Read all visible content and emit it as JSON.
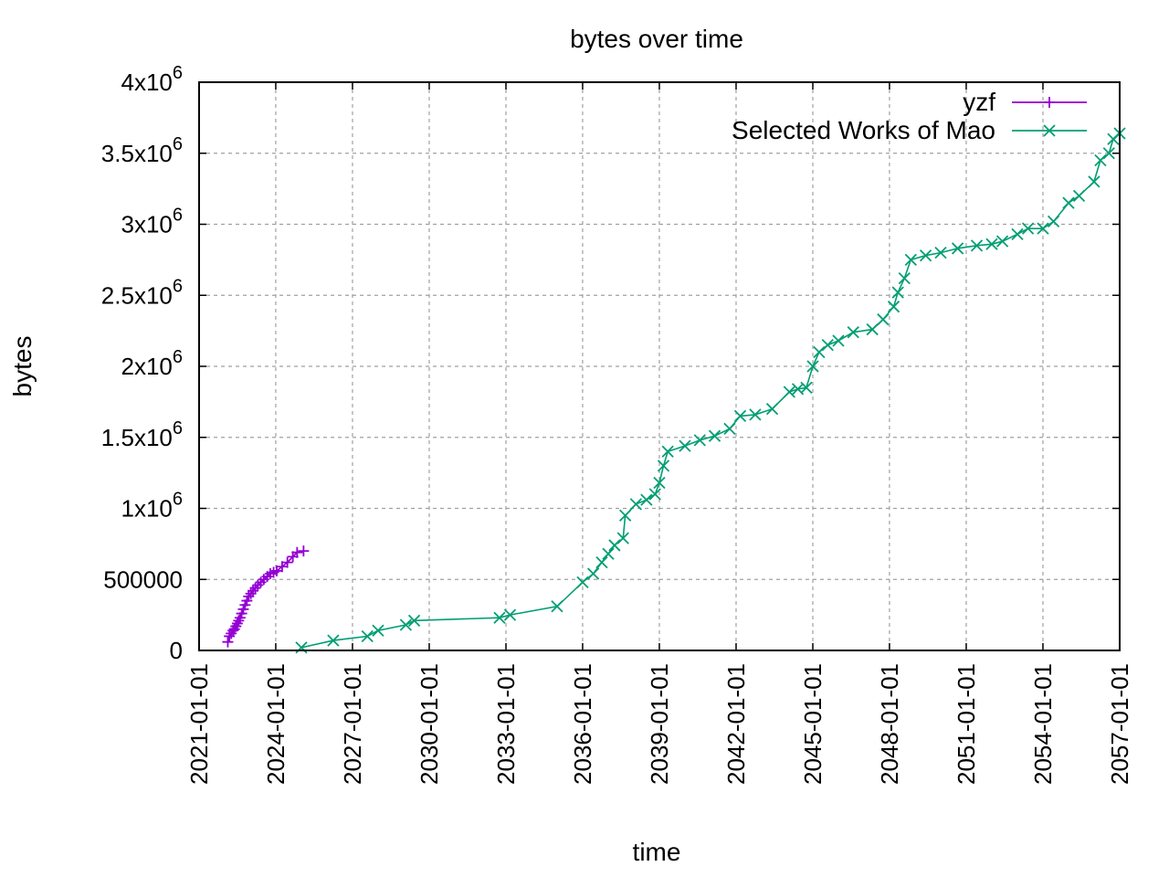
{
  "chart_data": {
    "type": "line",
    "title": "bytes over time",
    "xlabel": "time",
    "ylabel": "bytes",
    "xlim": [
      "2021-01-01",
      "2057-01-01"
    ],
    "ylim": [
      0,
      4000000
    ],
    "grid": true,
    "legend_position": "top-right",
    "x_ticks": [
      "2021-01-01",
      "2024-01-01",
      "2027-01-01",
      "2030-01-01",
      "2033-01-01",
      "2036-01-01",
      "2039-01-01",
      "2042-01-01",
      "2045-01-01",
      "2048-01-01",
      "2051-01-01",
      "2054-01-01",
      "2057-01-01"
    ],
    "y_ticks": [
      {
        "value": 0,
        "base": "0",
        "exp": ""
      },
      {
        "value": 500000,
        "base": "500000",
        "exp": ""
      },
      {
        "value": 1000000,
        "base": "1x10",
        "exp": "6"
      },
      {
        "value": 1500000,
        "base": "1.5x10",
        "exp": "6"
      },
      {
        "value": 2000000,
        "base": "2x10",
        "exp": "6"
      },
      {
        "value": 2500000,
        "base": "2.5x10",
        "exp": "6"
      },
      {
        "value": 3000000,
        "base": "3x10",
        "exp": "6"
      },
      {
        "value": 3500000,
        "base": "3.5x10",
        "exp": "6"
      },
      {
        "value": 4000000,
        "base": "4x10",
        "exp": "6"
      }
    ],
    "series": [
      {
        "name": "yzf",
        "color": "#9400d3",
        "marker": "plus",
        "points": [
          [
            "2022-02-15",
            60000
          ],
          [
            "2022-03-10",
            100000
          ],
          [
            "2022-04-05",
            120000
          ],
          [
            "2022-05-01",
            140000
          ],
          [
            "2022-05-20",
            150000
          ],
          [
            "2022-06-10",
            170000
          ],
          [
            "2022-07-01",
            190000
          ],
          [
            "2022-07-20",
            210000
          ],
          [
            "2022-08-10",
            230000
          ],
          [
            "2022-09-01",
            260000
          ],
          [
            "2022-09-25",
            290000
          ],
          [
            "2022-10-20",
            320000
          ],
          [
            "2022-11-15",
            350000
          ],
          [
            "2022-12-10",
            380000
          ],
          [
            "2023-01-10",
            400000
          ],
          [
            "2023-02-10",
            420000
          ],
          [
            "2023-03-15",
            440000
          ],
          [
            "2023-04-20",
            460000
          ],
          [
            "2023-06-01",
            480000
          ],
          [
            "2023-07-15",
            500000
          ],
          [
            "2023-09-01",
            520000
          ],
          [
            "2023-10-15",
            540000
          ],
          [
            "2023-12-01",
            550000
          ],
          [
            "2024-01-15",
            560000
          ],
          [
            "2024-04-01",
            590000
          ],
          [
            "2024-06-15",
            620000
          ],
          [
            "2024-09-01",
            660000
          ],
          [
            "2024-11-01",
            690000
          ],
          [
            "2025-02-01",
            700000
          ]
        ]
      },
      {
        "name": "Selected Works of Mao",
        "color": "#009e73",
        "marker": "cross",
        "points": [
          [
            "2025-01-01",
            20000
          ],
          [
            "2026-04-01",
            70000
          ],
          [
            "2027-08-01",
            100000
          ],
          [
            "2028-01-01",
            140000
          ],
          [
            "2029-02-01",
            180000
          ],
          [
            "2029-06-01",
            210000
          ],
          [
            "2032-10-01",
            230000
          ],
          [
            "2033-03-01",
            250000
          ],
          [
            "2035-01-01",
            310000
          ],
          [
            "2036-01-01",
            480000
          ],
          [
            "2036-06-01",
            540000
          ],
          [
            "2036-10-01",
            620000
          ],
          [
            "2037-01-01",
            680000
          ],
          [
            "2037-04-01",
            740000
          ],
          [
            "2037-08-01",
            790000
          ],
          [
            "2037-09-01",
            950000
          ],
          [
            "2038-02-01",
            1030000
          ],
          [
            "2038-07-01",
            1060000
          ],
          [
            "2038-11-01",
            1100000
          ],
          [
            "2039-01-01",
            1180000
          ],
          [
            "2039-03-01",
            1300000
          ],
          [
            "2039-05-01",
            1400000
          ],
          [
            "2040-01-01",
            1440000
          ],
          [
            "2040-08-01",
            1480000
          ],
          [
            "2041-03-01",
            1510000
          ],
          [
            "2041-10-01",
            1560000
          ],
          [
            "2042-03-01",
            1650000
          ],
          [
            "2042-10-01",
            1660000
          ],
          [
            "2043-06-01",
            1700000
          ],
          [
            "2044-02-01",
            1820000
          ],
          [
            "2044-06-01",
            1840000
          ],
          [
            "2044-10-01",
            1850000
          ],
          [
            "2045-01-01",
            2000000
          ],
          [
            "2045-04-01",
            2100000
          ],
          [
            "2045-08-01",
            2150000
          ],
          [
            "2046-01-01",
            2180000
          ],
          [
            "2046-08-01",
            2240000
          ],
          [
            "2047-05-01",
            2260000
          ],
          [
            "2047-10-01",
            2330000
          ],
          [
            "2048-03-01",
            2420000
          ],
          [
            "2048-05-01",
            2520000
          ],
          [
            "2048-08-01",
            2620000
          ],
          [
            "2048-11-01",
            2750000
          ],
          [
            "2049-06-01",
            2780000
          ],
          [
            "2050-01-01",
            2800000
          ],
          [
            "2050-09-01",
            2830000
          ],
          [
            "2051-06-01",
            2850000
          ],
          [
            "2052-01-01",
            2860000
          ],
          [
            "2052-06-01",
            2880000
          ],
          [
            "2053-01-01",
            2930000
          ],
          [
            "2053-06-01",
            2970000
          ],
          [
            "2054-01-01",
            2970000
          ],
          [
            "2054-06-01",
            3020000
          ],
          [
            "2055-01-01",
            3150000
          ],
          [
            "2055-06-01",
            3200000
          ],
          [
            "2056-01-01",
            3300000
          ],
          [
            "2056-04-01",
            3450000
          ],
          [
            "2056-08-01",
            3500000
          ],
          [
            "2056-10-01",
            3600000
          ],
          [
            "2057-01-01",
            3640000
          ]
        ]
      }
    ]
  }
}
